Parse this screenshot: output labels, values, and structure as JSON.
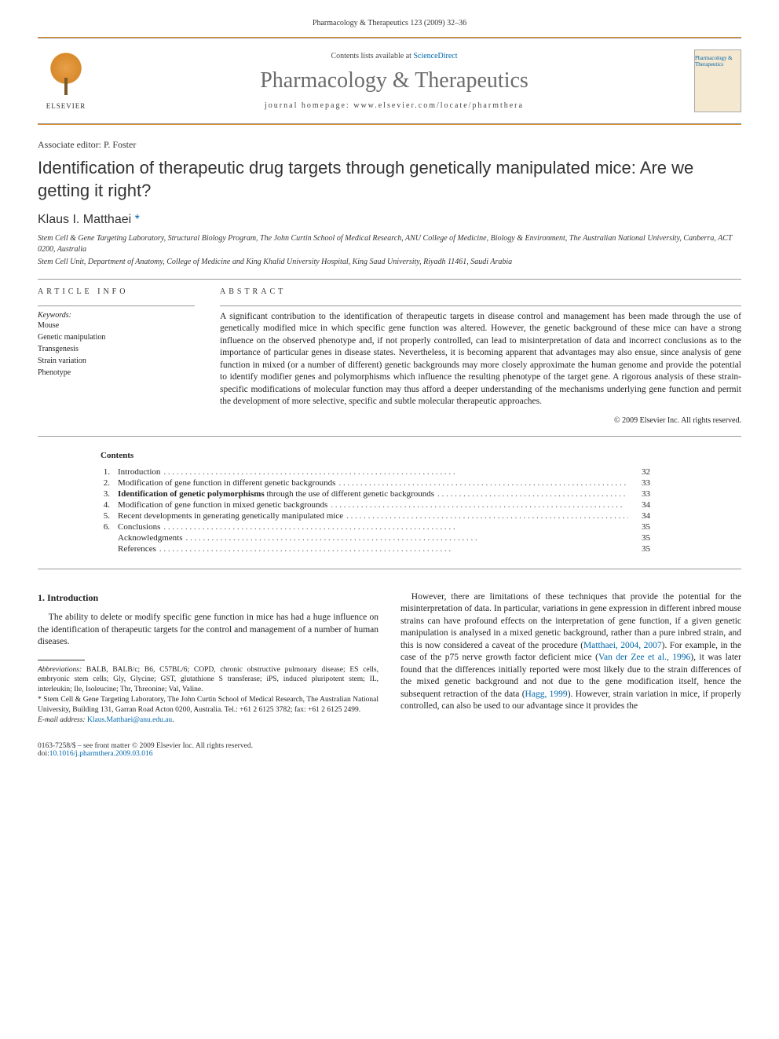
{
  "header": {
    "citation": "Pharmacology & Therapeutics 123 (2009) 32–36",
    "contents_prefix": "Contents lists available at ",
    "contents_link": "ScienceDirect",
    "journal_name": "Pharmacology & Therapeutics",
    "homepage_prefix": "journal homepage: ",
    "homepage": "www.elsevier.com/locate/pharmthera",
    "elsevier_label": "ELSEVIER",
    "cover_text": "Pharmacology & Therapeutics"
  },
  "article": {
    "assoc_editor": "Associate editor: P. Foster",
    "title": "Identification of therapeutic drug targets through genetically manipulated mice: Are we getting it right?",
    "author": "Klaus I. Matthaei ",
    "author_mark": "*",
    "affiliations": [
      "Stem Cell & Gene Targeting Laboratory, Structural Biology Program, The John Curtin School of Medical Research, ANU College of Medicine, Biology & Environment, The Australian National University, Canberra, ACT 0200, Australia",
      "Stem Cell Unit, Department of Anatomy, College of Medicine and King Khalid University Hospital, King Saud University, Riyadh 11461, Saudi Arabia"
    ]
  },
  "info": {
    "header": "ARTICLE INFO",
    "keywords_label": "Keywords:",
    "keywords": [
      "Mouse",
      "Genetic manipulation",
      "Transgenesis",
      "Strain variation",
      "Phenotype"
    ]
  },
  "abstract": {
    "header": "ABSTRACT",
    "text": "A significant contribution to the identification of therapeutic targets in disease control and management has been made through the use of genetically modified mice in which specific gene function was altered. However, the genetic background of these mice can have a strong influence on the observed phenotype and, if not properly controlled, can lead to misinterpretation of data and incorrect conclusions as to the importance of particular genes in disease states. Nevertheless, it is becoming apparent that advantages may also ensue, since analysis of gene function in mixed (or a number of different) genetic backgrounds may more closely approximate the human genome and provide the potential to identify modifier genes and polymorphisms which influence the resulting phenotype of the target gene. A rigorous analysis of these strain-specific modifications of molecular function may thus afford a deeper understanding of the mechanisms underlying gene function and permit the development of more selective, specific and subtle molecular therapeutic approaches.",
    "copyright": "© 2009 Elsevier Inc. All rights reserved."
  },
  "contents": {
    "title": "Contents",
    "items": [
      {
        "num": "1.",
        "title": "Introduction",
        "page": "32"
      },
      {
        "num": "2.",
        "title": "Modification of gene function in different genetic backgrounds",
        "page": "33"
      },
      {
        "num": "3.",
        "title_bold": "Identification of genetic polymorphisms",
        "title_rest": " through the use of different genetic backgrounds",
        "page": "33"
      },
      {
        "num": "4.",
        "title": "Modification of gene function in mixed genetic backgrounds",
        "page": "34"
      },
      {
        "num": "5.",
        "title": "Recent developments in generating genetically manipulated mice",
        "page": "34"
      },
      {
        "num": "6.",
        "title": "Conclusions",
        "page": "35"
      },
      {
        "num": "",
        "title": "Acknowledgments",
        "page": "35"
      },
      {
        "num": "",
        "title": "References",
        "page": "35"
      }
    ]
  },
  "body": {
    "section_num": "1.",
    "section_title": "Introduction",
    "col1_para": "The ability to delete or modify specific gene function in mice has had a huge influence on the identification of therapeutic targets for the control and management of a number of human diseases.",
    "col2_para_part1": "However, there are limitations of these techniques that provide the potential for the misinterpretation of data. In particular, variations in gene expression in different inbred mouse strains can have profound effects on the interpretation of gene function, if a given genetic manipulation is analysed in a mixed genetic background, rather than a pure inbred strain, and this is now considered a caveat of the procedure (",
    "ref1": "Matthaei, 2004, 2007",
    "col2_para_part2": "). For example, in the case of the p75 nerve growth factor deficient mice (",
    "ref2": "Van der Zee et al., 1996",
    "col2_para_part3": "), it was later found that the differences initially reported were most likely due to the strain differences of the mixed genetic background and not due to the gene modification itself, hence the subsequent retraction of the data (",
    "ref3": "Hagg, 1999",
    "col2_para_part4": "). However, strain variation in mice, if properly controlled, can also be used to our advantage since it provides the"
  },
  "footnotes": {
    "abbrev_label": "Abbreviations:",
    "abbrev_text": " BALB, BALB/c; B6, C57BL/6; COPD, chronic obstructive pulmonary disease; ES cells, embryonic stem cells; Gly, Glycine; GST, glutathione S transferase; iPS, induced pluripotent stem; IL, interleukin; Ile, Isoleucine; Thr, Threonine; Val, Valine.",
    "corr_mark": "*",
    "corr_text": " Stem Cell & Gene Targeting Laboratory, The John Curtin School of Medical Research, The Australian National University, Building 131, Garran Road Acton 0200, Australia. Tel.: +61 2 6125 3782; fax: +61 2 6125 2499.",
    "email_label": "E-mail address:",
    "email": "Klaus.Matthaei@anu.edu.au",
    "email_suffix": "."
  },
  "footer": {
    "line1": "0163-7258/$ – see front matter © 2009 Elsevier Inc. All rights reserved.",
    "doi_prefix": "doi:",
    "doi": "10.1016/j.pharmthera.2009.03.016"
  },
  "colors": {
    "link": "#0066aa",
    "rule_orange": "#d88a2a",
    "text": "#222222",
    "gray_title": "#6b6b6b"
  }
}
